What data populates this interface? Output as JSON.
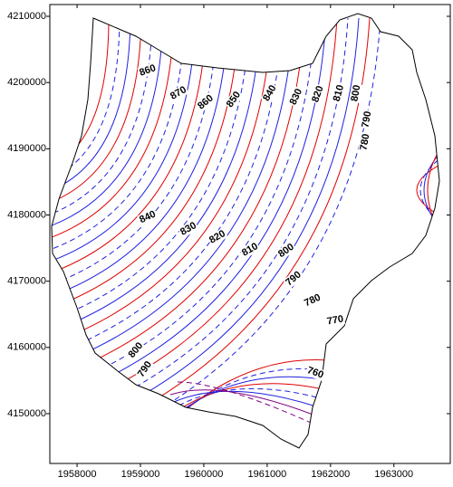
{
  "chart_data": {
    "type": "contour",
    "xlim": [
      1957570,
      1963890
    ],
    "ylim": [
      4142480,
      4211780
    ],
    "xticks": [
      1958000,
      1959000,
      1960000,
      1961000,
      1962000,
      1963000
    ],
    "yticks": [
      4150000,
      4160000,
      4170000,
      4180000,
      4190000,
      4200000,
      4210000
    ],
    "contour_labels": [
      860,
      870,
      860,
      850,
      840,
      830,
      820,
      810,
      800,
      790,
      780,
      840,
      830,
      820,
      810,
      800,
      790,
      780,
      770,
      800,
      790,
      760
    ]
  }
}
